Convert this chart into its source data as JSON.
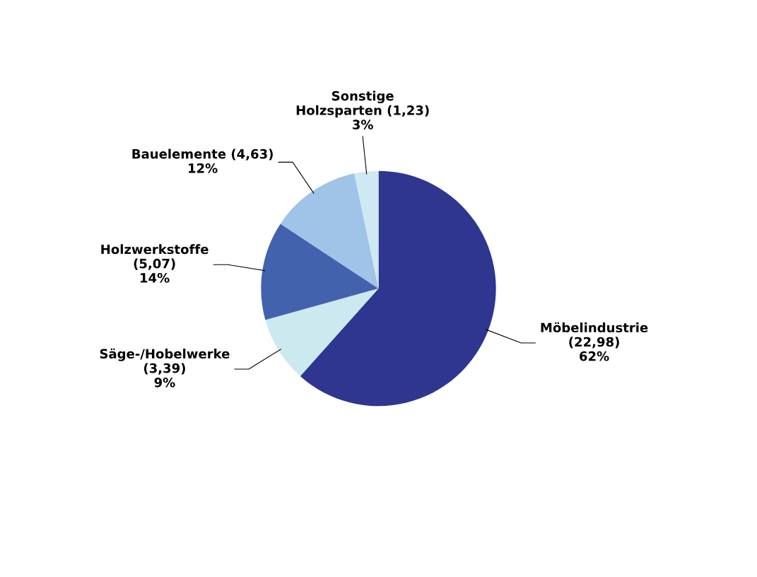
{
  "chart_data": {
    "type": "pie",
    "categories": [
      "Möbelindustrie",
      "Säge-/Hobelwerke",
      "Holzwerkstoffe",
      "Bauelemente",
      "Sonstige\nHolzsparten"
    ],
    "values": [
      22.98,
      3.39,
      5.07,
      4.63,
      1.23
    ],
    "value_labels": [
      "\n(22,98)\n62%",
      "\n(3,39)\n9%",
      "\n(5,07)\n14%",
      " (4,63)\n12%",
      " (1,23)\n3%"
    ],
    "colors": [
      "#2e3690",
      "#cde9f0",
      "#4262ae",
      "#a0c3e8",
      "#cfe9f3"
    ]
  }
}
